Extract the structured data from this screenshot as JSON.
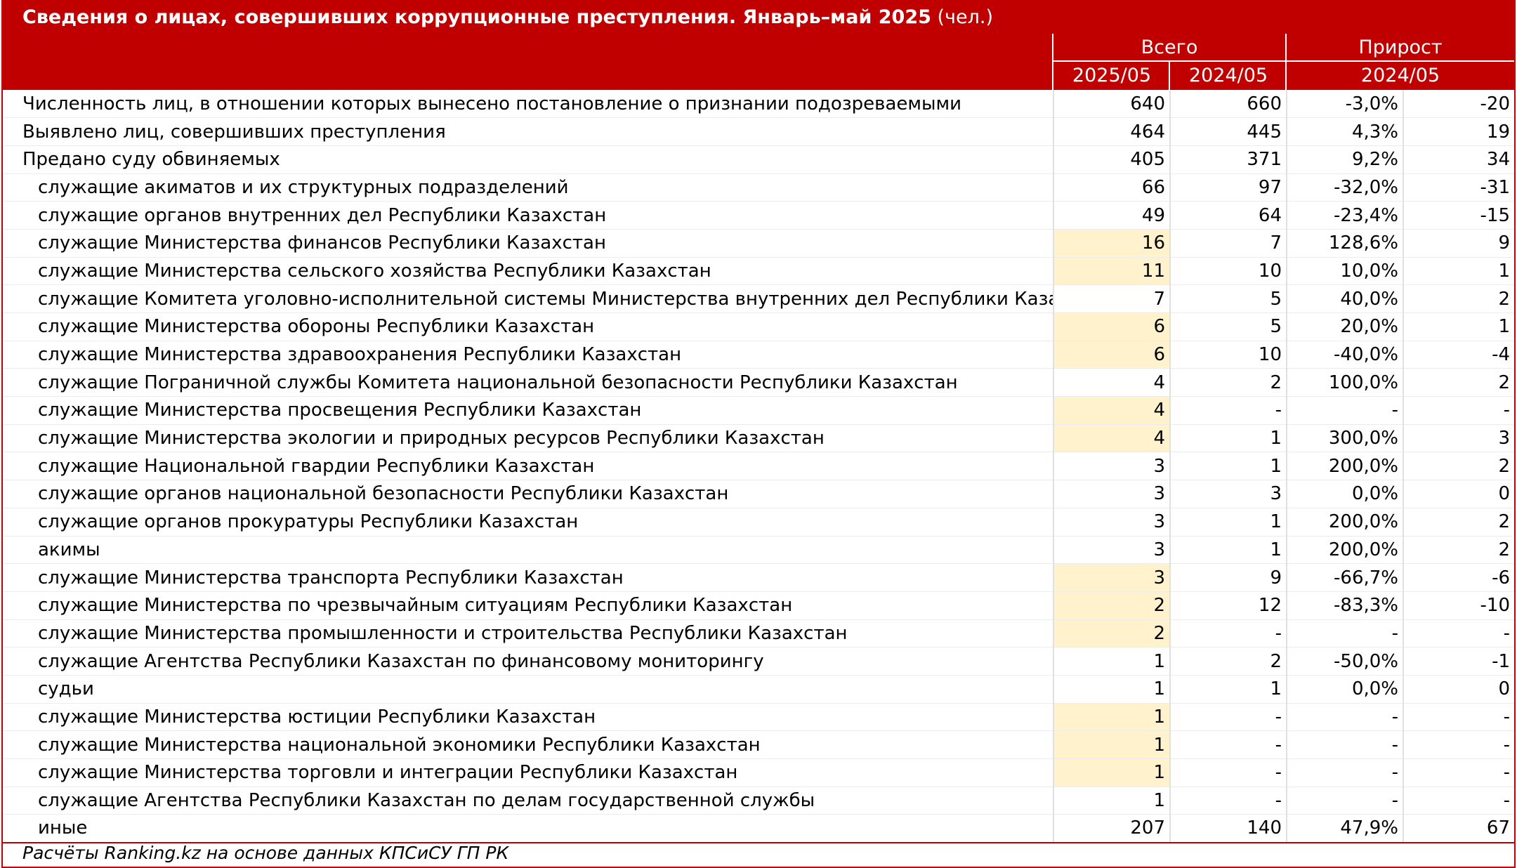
{
  "title": {
    "bold": "Сведения о лицах, совершивших коррупционные преступления. Январь–май 2025",
    "unit": " (чел.)"
  },
  "header": {
    "total": "Всего",
    "growth": "Прирост",
    "col_2025": "2025/05",
    "col_2024": "2024/05",
    "col_growth": "2024/05"
  },
  "rows": [
    {
      "label": "Численность лиц, в отношении которых вынесено постановление о признании подозреваемыми",
      "sub": false,
      "v2025": "640",
      "v2024": "660",
      "pct": "-3,0%",
      "abs": "-20",
      "hl": false
    },
    {
      "label": "Выявлено лиц, совершивших преступления",
      "sub": false,
      "v2025": "464",
      "v2024": "445",
      "pct": "4,3%",
      "abs": "19",
      "hl": false
    },
    {
      "label": "Предано суду обвиняемых",
      "sub": false,
      "v2025": "405",
      "v2024": "371",
      "pct": "9,2%",
      "abs": "34",
      "hl": false
    },
    {
      "label": "служащие акиматов и их структурных подразделений",
      "sub": true,
      "v2025": "66",
      "v2024": "97",
      "pct": "-32,0%",
      "abs": "-31",
      "hl": false
    },
    {
      "label": "служащие органов внутренних дел Республики Казахстан",
      "sub": true,
      "v2025": "49",
      "v2024": "64",
      "pct": "-23,4%",
      "abs": "-15",
      "hl": false
    },
    {
      "label": "служащие Министерства финансов Республики Казахстан",
      "sub": true,
      "v2025": "16",
      "v2024": "7",
      "pct": "128,6%",
      "abs": "9",
      "hl": true
    },
    {
      "label": "служащие Министерства сельского хозяйства Республики Казахстан",
      "sub": true,
      "v2025": "11",
      "v2024": "10",
      "pct": "10,0%",
      "abs": "1",
      "hl": true
    },
    {
      "label": "служащие Комитета уголовно-исполнительной системы Министерства внутренних дел Республики Казахстан",
      "sub": true,
      "v2025": "7",
      "v2024": "5",
      "pct": "40,0%",
      "abs": "2",
      "hl": false
    },
    {
      "label": "служащие Министерства обороны Республики Казахстан",
      "sub": true,
      "v2025": "6",
      "v2024": "5",
      "pct": "20,0%",
      "abs": "1",
      "hl": true
    },
    {
      "label": "служащие Министерства здравоохранения Республики Казахстан",
      "sub": true,
      "v2025": "6",
      "v2024": "10",
      "pct": "-40,0%",
      "abs": "-4",
      "hl": true
    },
    {
      "label": "служащие Пограничной службы Комитета национальной безопасности Республики Казахстан",
      "sub": true,
      "v2025": "4",
      "v2024": "2",
      "pct": "100,0%",
      "abs": "2",
      "hl": false
    },
    {
      "label": "служащие Министерства просвещения Республики Казахстан",
      "sub": true,
      "v2025": "4",
      "v2024": "-",
      "pct": "-",
      "abs": "-",
      "hl": true
    },
    {
      "label": "служащие Министерства экологии и природных ресурсов Республики Казахстан",
      "sub": true,
      "v2025": "4",
      "v2024": "1",
      "pct": "300,0%",
      "abs": "3",
      "hl": true
    },
    {
      "label": "служащие Национальной гвардии Республики Казахстан",
      "sub": true,
      "v2025": "3",
      "v2024": "1",
      "pct": "200,0%",
      "abs": "2",
      "hl": false
    },
    {
      "label": "служащие органов национальной безопасности Республики Казахстан",
      "sub": true,
      "v2025": "3",
      "v2024": "3",
      "pct": "0,0%",
      "abs": "0",
      "hl": false
    },
    {
      "label": "служащие органов прокуратуры Республики Казахстан",
      "sub": true,
      "v2025": "3",
      "v2024": "1",
      "pct": "200,0%",
      "abs": "2",
      "hl": false
    },
    {
      "label": "акимы",
      "sub": true,
      "v2025": "3",
      "v2024": "1",
      "pct": "200,0%",
      "abs": "2",
      "hl": false
    },
    {
      "label": "служащие Министерства транспорта Республики Казахстан",
      "sub": true,
      "v2025": "3",
      "v2024": "9",
      "pct": "-66,7%",
      "abs": "-6",
      "hl": true
    },
    {
      "label": "служащие Министерства по чрезвычайным ситуациям Республики Казахстан",
      "sub": true,
      "v2025": "2",
      "v2024": "12",
      "pct": "-83,3%",
      "abs": "-10",
      "hl": true
    },
    {
      "label": "служащие Министерства промышленности и строительства Республики Казахстан",
      "sub": true,
      "v2025": "2",
      "v2024": "-",
      "pct": "-",
      "abs": "-",
      "hl": true
    },
    {
      "label": "служащие Агентства Республики Казахстан по финансовому мониторингу",
      "sub": true,
      "v2025": "1",
      "v2024": "2",
      "pct": "-50,0%",
      "abs": "-1",
      "hl": false
    },
    {
      "label": "судьи",
      "sub": true,
      "v2025": "1",
      "v2024": "1",
      "pct": "0,0%",
      "abs": "0",
      "hl": false
    },
    {
      "label": "служащие Министерства юстиции Республики Казахстан",
      "sub": true,
      "v2025": "1",
      "v2024": "-",
      "pct": "-",
      "abs": "-",
      "hl": true
    },
    {
      "label": "служащие Министерства национальной экономики Республики Казахстан",
      "sub": true,
      "v2025": "1",
      "v2024": "-",
      "pct": "-",
      "abs": "-",
      "hl": true
    },
    {
      "label": "служащие Министерства торговли и интеграции Республики Казахстан",
      "sub": true,
      "v2025": "1",
      "v2024": "-",
      "pct": "-",
      "abs": "-",
      "hl": true
    },
    {
      "label": "служащие Агентства Республики Казахстан по делам государственной службы",
      "sub": true,
      "v2025": "1",
      "v2024": "-",
      "pct": "-",
      "abs": "-",
      "hl": false
    },
    {
      "label": "иные",
      "sub": true,
      "v2025": "207",
      "v2024": "140",
      "pct": "47,9%",
      "abs": "67",
      "hl": false
    }
  ],
  "footer": "Расчёты Ranking.kz на основе данных КПСиСУ ГП РК",
  "colors": {
    "accent": "#c00000",
    "highlight": "#fff2cc"
  }
}
